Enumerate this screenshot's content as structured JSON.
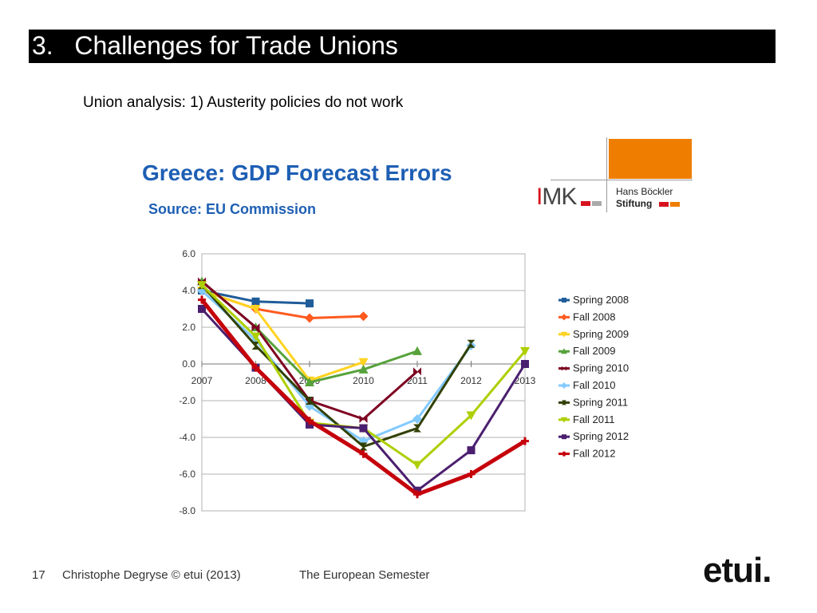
{
  "slide": {
    "title": "3.   Challenges for Trade Unions",
    "subtitle": "Union analysis: 1) Austerity policies do not work"
  },
  "figure": {
    "title": "Greece: GDP Forecast Errors",
    "source": "Source: EU Commission"
  },
  "logo": {
    "imk_letter_i": "I",
    "imk_rest": "MK",
    "hb_line1": "Hans Böckler",
    "hb_line2": "Stiftung",
    "colors": {
      "orange": "#ef7d00",
      "red": "#d7131e",
      "gray": "#aaaaaa"
    }
  },
  "footer": {
    "page_number": "17",
    "author": "Christophe Degryse © etui (2013)",
    "topic": "The European Semester",
    "brand": "etui."
  },
  "chart_data": {
    "type": "line",
    "title": "Greece: GDP Forecast Errors",
    "xlabel": "",
    "ylabel": "",
    "categories": [
      "2007",
      "2008",
      "2009",
      "2010",
      "2011",
      "2012",
      "2013"
    ],
    "ylim": [
      -8.0,
      6.0
    ],
    "yticks": [
      "6.0",
      "4.0",
      "2.0",
      "0.0",
      "-2.0",
      "-4.0",
      "-6.0",
      "-8.0"
    ],
    "grid": true,
    "legend_position": "right",
    "series": [
      {
        "name": "Spring 2008",
        "color": "#1f5c99",
        "marker": "square",
        "values": [
          4.0,
          3.4,
          3.3,
          null,
          null,
          null,
          null
        ]
      },
      {
        "name": "Fall 2008",
        "color": "#ff5a1f",
        "marker": "diamond",
        "values": [
          4.0,
          3.0,
          2.5,
          2.6,
          null,
          null,
          null
        ]
      },
      {
        "name": "Spring 2009",
        "color": "#ffd320",
        "marker": "triangle-down",
        "values": [
          4.0,
          3.0,
          -0.9,
          0.1,
          null,
          null,
          null
        ]
      },
      {
        "name": "Fall 2009",
        "color": "#57a23b",
        "marker": "triangle-up",
        "values": [
          4.5,
          2.0,
          -1.0,
          -0.3,
          0.7,
          null,
          null
        ]
      },
      {
        "name": "Spring 2010",
        "color": "#7e0021",
        "marker": "bowtie-h",
        "values": [
          4.5,
          2.0,
          -2.0,
          -3.0,
          -0.4,
          null,
          null
        ]
      },
      {
        "name": "Fall 2010",
        "color": "#83caff",
        "marker": "diamond",
        "values": [
          4.0,
          1.3,
          -2.3,
          -4.2,
          -3.0,
          1.0,
          null
        ]
      },
      {
        "name": "Spring 2011",
        "color": "#314004",
        "marker": "bowtie-v",
        "values": [
          4.3,
          1.0,
          -2.0,
          -4.5,
          -3.5,
          1.1,
          null
        ]
      },
      {
        "name": "Fall 2011",
        "color": "#aecf00",
        "marker": "triangle-down",
        "values": [
          4.3,
          1.5,
          -3.2,
          -3.5,
          -5.5,
          -2.8,
          0.7
        ]
      },
      {
        "name": "Spring 2012",
        "color": "#4b1f6f",
        "marker": "square",
        "values": [
          3.0,
          -0.2,
          -3.3,
          -3.5,
          -6.9,
          -4.7,
          0.0
        ]
      },
      {
        "name": "Fall 2012",
        "color": "#c5000b",
        "marker": "plus",
        "values": [
          3.5,
          -0.2,
          -3.1,
          -4.9,
          -7.1,
          -6.0,
          -4.2
        ]
      }
    ]
  }
}
